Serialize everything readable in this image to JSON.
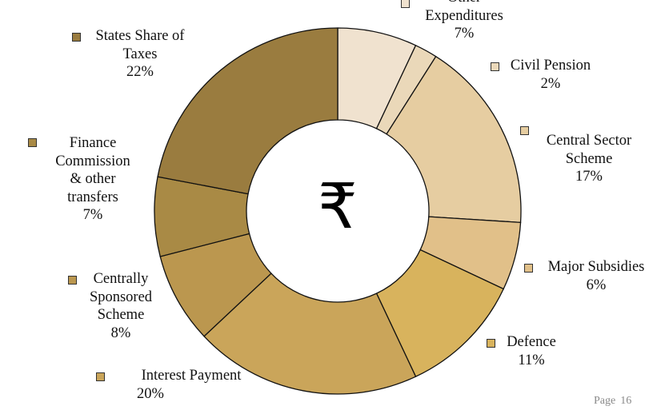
{
  "chart_data": {
    "type": "pie",
    "donut": true,
    "center_symbol": "₹",
    "slices": [
      {
        "label": [
          "Other",
          "Expenditures"
        ],
        "value": 7,
        "pct_label": "7%",
        "color": "#f0e2cf"
      },
      {
        "label": [
          "Civil Pension"
        ],
        "value": 2,
        "pct_label": "2%",
        "color": "#ead8b9"
      },
      {
        "label": [
          "Central Sector",
          "Scheme"
        ],
        "value": 17,
        "pct_label": "17%",
        "color": "#e6cda1"
      },
      {
        "label": [
          "Major Subsidies"
        ],
        "value": 6,
        "pct_label": "6%",
        "color": "#e1c089"
      },
      {
        "label": [
          "Defence"
        ],
        "value": 11,
        "pct_label": "11%",
        "color": "#d8b35d"
      },
      {
        "label": [
          "Interest Payment"
        ],
        "value": 20,
        "pct_label": "20%",
        "color": "#caa55a"
      },
      {
        "label": [
          "Centrally",
          "Sponsored",
          "Scheme"
        ],
        "value": 8,
        "pct_label": "8%",
        "color": "#bb974f"
      },
      {
        "label": [
          "Finance",
          "Commission",
          "& other",
          "transfers"
        ],
        "value": 7,
        "pct_label": "7%",
        "color": "#a98a45"
      },
      {
        "label": [
          "States Share of",
          "Taxes"
        ],
        "value": 22,
        "pct_label": "22%",
        "color": "#9a7c3f"
      }
    ],
    "legend_placement": "labels around chart"
  },
  "footer": {
    "page_label": "Page",
    "page_number": "16"
  }
}
